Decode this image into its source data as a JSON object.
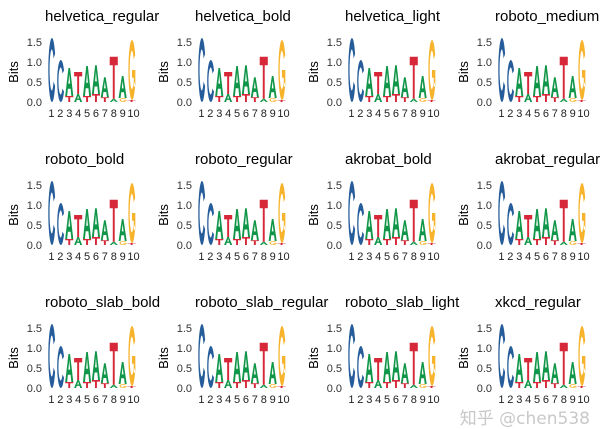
{
  "chart_data": {
    "type": "sequence-logo",
    "ylabel": "Bits",
    "ylim": [
      0,
      1.6
    ],
    "yticks": [
      "0.0",
      "0.5",
      "1.0",
      "1.5"
    ],
    "yticks_values": [
      0,
      0.5,
      1.0,
      1.5
    ],
    "xticks": [
      "1",
      "2",
      "3",
      "4",
      "5",
      "6",
      "7",
      "8",
      "9",
      "10"
    ],
    "colors": {
      "A": "#109648",
      "C": "#255C99",
      "G": "#F7B32B",
      "T": "#D62839"
    },
    "positions": [
      [
        [
          "C",
          1.6
        ]
      ],
      [
        [
          "C",
          1.05
        ]
      ],
      [
        [
          "T",
          0.15
        ],
        [
          "A",
          0.7
        ]
      ],
      [
        [
          "A",
          0.2
        ],
        [
          "T",
          0.55
        ]
      ],
      [
        [
          "T",
          0.15
        ],
        [
          "A",
          0.75
        ]
      ],
      [
        [
          "T",
          0.2
        ],
        [
          "A",
          0.72
        ]
      ],
      [
        [
          "T",
          0.12
        ],
        [
          "A",
          0.5
        ]
      ],
      [
        [
          "A",
          0.08
        ],
        [
          "T",
          1.05
        ]
      ],
      [
        [
          "G",
          0.1
        ],
        [
          "A",
          0.55
        ]
      ],
      [
        [
          "T",
          0.05
        ],
        [
          "G",
          1.5
        ]
      ]
    ],
    "panels": [
      {
        "title": "helvetica_regular"
      },
      {
        "title": "helvetica_bold"
      },
      {
        "title": "helvetica_light"
      },
      {
        "title": "roboto_medium"
      },
      {
        "title": "roboto_bold"
      },
      {
        "title": "roboto_regular"
      },
      {
        "title": "akrobat_bold"
      },
      {
        "title": "akrobat_regular"
      },
      {
        "title": "roboto_slab_bold"
      },
      {
        "title": "roboto_slab_regular"
      },
      {
        "title": "roboto_slab_light"
      },
      {
        "title": "xkcd_regular"
      }
    ]
  },
  "watermark": "知乎 @chen538"
}
